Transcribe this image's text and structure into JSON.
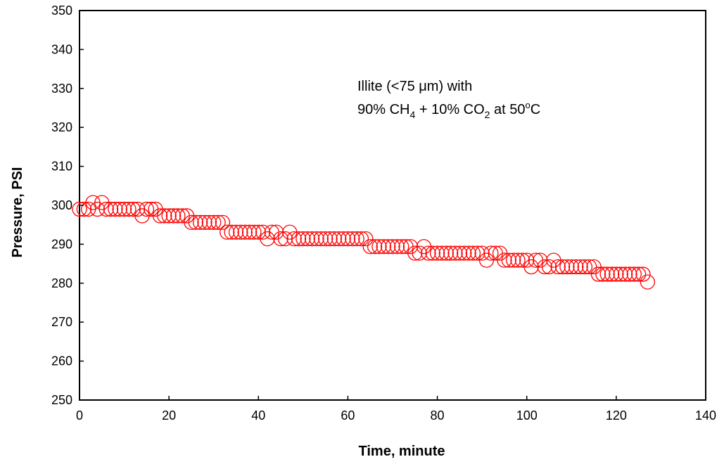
{
  "chart_data": {
    "type": "scatter",
    "xlabel": "Time, minute",
    "ylabel": "Pressure, PSI",
    "xlim": [
      0,
      140
    ],
    "ylim": [
      250,
      350
    ],
    "xticks": [
      "0",
      "20",
      "40",
      "60",
      "80",
      "100",
      "120",
      "140"
    ],
    "yticks": [
      "250",
      "260",
      "270",
      "280",
      "290",
      "300",
      "310",
      "320",
      "330",
      "340",
      "350"
    ],
    "annotation": {
      "line1": "Illite (<75 μm) with",
      "line2_parts": [
        "90% CH",
        "4",
        " + 10% CO",
        "2",
        " at 50",
        "o",
        "C"
      ]
    },
    "grid": false,
    "legend": "none",
    "marker": "open-circle",
    "color": "#ff0000",
    "series": [
      {
        "x": [
          0,
          1,
          2,
          3,
          4,
          5,
          6,
          7,
          8,
          9,
          10,
          11,
          12,
          13,
          14,
          15,
          16,
          17,
          18,
          19,
          20,
          21,
          22,
          23,
          24,
          25,
          26,
          27,
          28,
          29,
          30,
          31,
          32,
          33,
          34,
          35,
          36,
          37,
          38,
          39,
          40,
          41,
          42,
          43,
          44,
          45,
          46,
          47,
          48,
          49,
          50,
          51,
          52,
          53,
          54,
          55,
          56,
          57,
          58,
          59,
          60,
          61,
          62,
          63,
          64,
          65,
          66,
          67,
          68,
          69,
          70,
          71,
          72,
          73,
          74,
          75,
          76,
          77,
          78,
          79,
          80,
          81,
          82,
          83,
          84,
          85,
          86,
          87,
          88,
          89,
          90,
          91,
          92,
          93,
          94,
          95,
          96,
          97,
          98,
          99,
          100,
          101,
          102,
          103,
          104,
          105,
          106,
          107,
          108,
          109,
          110,
          111,
          112,
          113,
          114,
          115,
          116,
          117,
          118,
          119,
          120,
          121,
          122,
          123,
          124,
          125,
          126,
          127
        ],
        "y": [
          299,
          299,
          299,
          300.7,
          299,
          300.7,
          299,
          299,
          299,
          299,
          299,
          299,
          299,
          299,
          297.3,
          299,
          299,
          299,
          297.3,
          297.3,
          297.3,
          297.3,
          297.3,
          297.3,
          297.3,
          295.6,
          295.6,
          295.6,
          295.6,
          295.6,
          295.6,
          295.6,
          295.6,
          293.1,
          293.1,
          293.1,
          293.1,
          293.1,
          293.1,
          293.1,
          293.1,
          293.1,
          291.4,
          293.1,
          293.1,
          291.4,
          291.4,
          293.1,
          291.4,
          291.4,
          291.4,
          291.4,
          291.4,
          291.4,
          291.4,
          291.4,
          291.4,
          291.4,
          291.4,
          291.4,
          291.4,
          291.4,
          291.4,
          291.4,
          291.4,
          289.4,
          289.4,
          289.4,
          289.4,
          289.4,
          289.4,
          289.4,
          289.4,
          289.4,
          289.4,
          287.7,
          287.7,
          289.4,
          287.7,
          287.7,
          287.7,
          287.7,
          287.7,
          287.7,
          287.7,
          287.7,
          287.7,
          287.7,
          287.7,
          287.7,
          287.7,
          285.9,
          287.7,
          287.7,
          287.7,
          285.9,
          285.9,
          285.9,
          285.9,
          285.9,
          285.9,
          284.2,
          285.9,
          285.9,
          284.2,
          284.2,
          285.9,
          284.2,
          284.2,
          284.2,
          284.2,
          284.2,
          284.2,
          284.2,
          284.2,
          284.2,
          282.3,
          282.3,
          282.3,
          282.3,
          282.3,
          282.3,
          282.3,
          282.3,
          282.3,
          282.3,
          282.3,
          280.3
        ]
      }
    ]
  }
}
